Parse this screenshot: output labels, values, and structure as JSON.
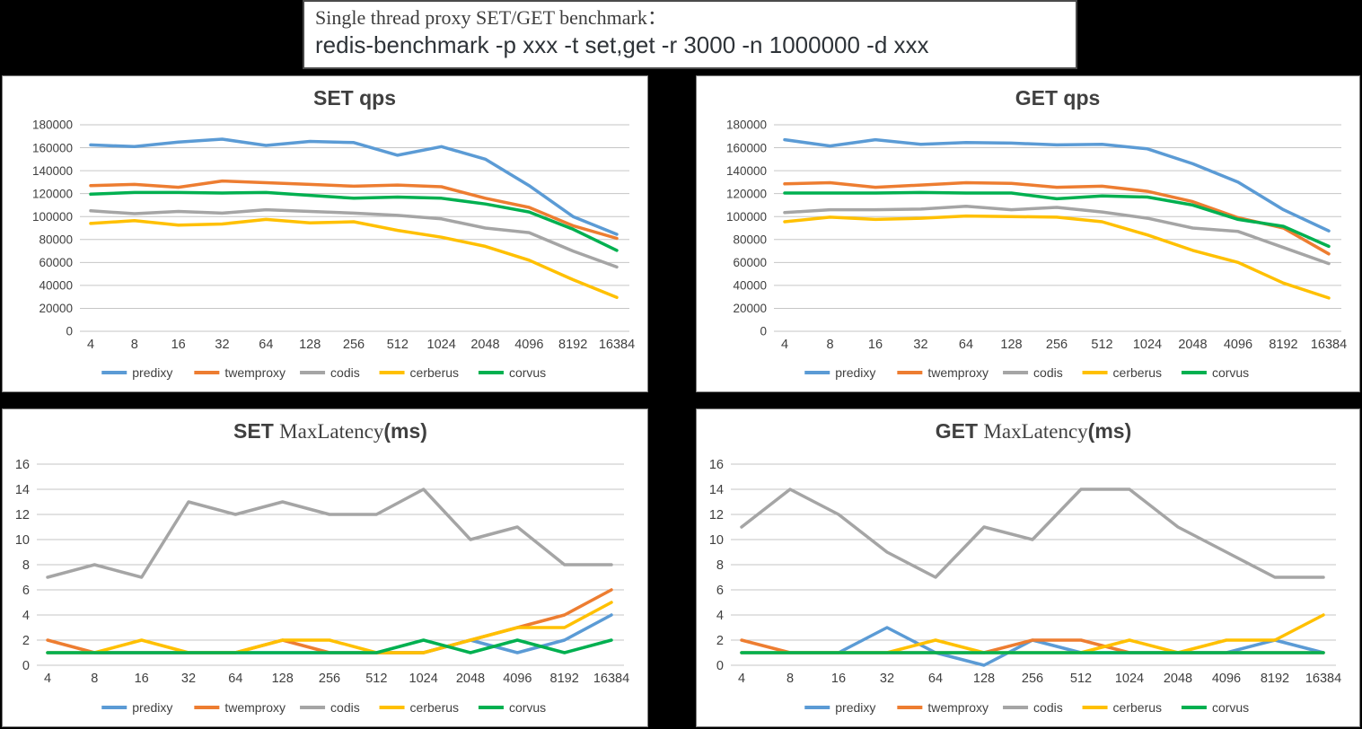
{
  "header": {
    "line1": "Single thread proxy SET/GET benchmark：",
    "line2": "redis-benchmark -p xxx -t set,get -r 3000 -n 1000000 -d xxx"
  },
  "legend": [
    "predixy",
    "twemproxy",
    "codis",
    "cerberus",
    "corvus"
  ],
  "colors": {
    "predixy": "#5B9BD5",
    "twemproxy": "#ED7D31",
    "codis": "#A5A5A5",
    "cerberus": "#FFC000",
    "corvus": "#00B050",
    "grid": "#C6C6C6",
    "axis_text": "#404040"
  },
  "chart_data": [
    {
      "id": "set-qps",
      "type": "line",
      "title": "SET  qps",
      "title_parts": [
        {
          "text": "SET  qps",
          "font": "sans"
        }
      ],
      "xlabel": "",
      "ylabel": "",
      "ylim": [
        0,
        180000
      ],
      "yticks": [
        0,
        20000,
        40000,
        60000,
        80000,
        100000,
        120000,
        140000,
        160000,
        180000
      ],
      "legend_position": "bottom",
      "grid": true,
      "categories": [
        "4",
        "8",
        "16",
        "32",
        "64",
        "128",
        "256",
        "512",
        "1024",
        "2048",
        "4096",
        "8192",
        "16384"
      ],
      "series": [
        {
          "name": "predixy",
          "values": [
            162500,
            161000,
            165000,
            167500,
            162000,
            165500,
            164500,
            153500,
            161000,
            150000,
            127000,
            100000,
            84500
          ]
        },
        {
          "name": "twemproxy",
          "values": [
            127000,
            128000,
            125500,
            131000,
            129500,
            128000,
            126500,
            127500,
            126000,
            116000,
            108000,
            92000,
            81000
          ]
        },
        {
          "name": "codis",
          "values": [
            105000,
            102500,
            104500,
            103000,
            106000,
            104500,
            103000,
            101000,
            98000,
            90000,
            86000,
            70000,
            56000
          ]
        },
        {
          "name": "cerberus",
          "values": [
            94000,
            96500,
            92500,
            93500,
            97500,
            94500,
            95500,
            88000,
            82000,
            74000,
            62000,
            45000,
            29500
          ]
        },
        {
          "name": "corvus",
          "values": [
            119500,
            121000,
            121000,
            120500,
            121000,
            118500,
            116000,
            117000,
            116000,
            111000,
            104000,
            89000,
            70500
          ]
        }
      ]
    },
    {
      "id": "get-qps",
      "type": "line",
      "title": "GET  qps",
      "title_parts": [
        {
          "text": "GET  qps",
          "font": "sans"
        }
      ],
      "xlabel": "",
      "ylabel": "",
      "ylim": [
        0,
        180000
      ],
      "yticks": [
        0,
        20000,
        40000,
        60000,
        80000,
        100000,
        120000,
        140000,
        160000,
        180000
      ],
      "legend_position": "bottom",
      "grid": true,
      "categories": [
        "4",
        "8",
        "16",
        "32",
        "64",
        "128",
        "256",
        "512",
        "1024",
        "2048",
        "4096",
        "8192",
        "16384"
      ],
      "series": [
        {
          "name": "predixy",
          "values": [
            167000,
            161500,
            167000,
            163000,
            164500,
            164000,
            162500,
            163000,
            159000,
            146000,
            130000,
            106000,
            87500
          ]
        },
        {
          "name": "twemproxy",
          "values": [
            128500,
            129500,
            125500,
            127500,
            129500,
            129000,
            125500,
            126500,
            122000,
            113000,
            99000,
            90000,
            67500
          ]
        },
        {
          "name": "codis",
          "values": [
            103500,
            106000,
            106000,
            106500,
            109000,
            106000,
            108000,
            104000,
            98500,
            90000,
            87000,
            73000,
            59000
          ]
        },
        {
          "name": "cerberus",
          "values": [
            95500,
            99500,
            97500,
            98500,
            100500,
            100000,
            99500,
            95500,
            84000,
            70500,
            60000,
            42000,
            29000
          ]
        },
        {
          "name": "corvus",
          "values": [
            120500,
            120500,
            120500,
            121000,
            120500,
            120500,
            115500,
            118000,
            117000,
            110000,
            97500,
            91500,
            74000
          ]
        }
      ]
    },
    {
      "id": "set-maxlatency",
      "type": "line",
      "title": "SET MaxLatency(ms)",
      "title_parts": [
        {
          "text": "SET ",
          "font": "sans"
        },
        {
          "text": "MaxLatency",
          "font": "serif"
        },
        {
          "text": "(ms)",
          "font": "sans"
        }
      ],
      "xlabel": "",
      "ylabel": "",
      "ylim": [
        0,
        16
      ],
      "yticks": [
        0,
        2,
        4,
        6,
        8,
        10,
        12,
        14,
        16
      ],
      "legend_position": "bottom",
      "grid": true,
      "categories": [
        "4",
        "8",
        "16",
        "32",
        "64",
        "128",
        "256",
        "512",
        "1024",
        "2048",
        "4096",
        "8192",
        "16384"
      ],
      "series": [
        {
          "name": "predixy",
          "values": [
            1,
            1,
            1,
            1,
            1,
            1,
            1,
            1,
            1,
            2,
            1,
            2,
            4
          ]
        },
        {
          "name": "twemproxy",
          "values": [
            2,
            1,
            1,
            1,
            1,
            2,
            1,
            1,
            1,
            2,
            3,
            4,
            6
          ]
        },
        {
          "name": "codis",
          "values": [
            7,
            8,
            7,
            13,
            12,
            13,
            12,
            12,
            14,
            10,
            11,
            8,
            8
          ]
        },
        {
          "name": "cerberus",
          "values": [
            1,
            1,
            2,
            1,
            1,
            2,
            2,
            1,
            1,
            2,
            3,
            3,
            5
          ]
        },
        {
          "name": "corvus",
          "values": [
            1,
            1,
            1,
            1,
            1,
            1,
            1,
            1,
            2,
            1,
            2,
            1,
            2
          ]
        }
      ]
    },
    {
      "id": "get-maxlatency",
      "type": "line",
      "title": "GET MaxLatency(ms)",
      "title_parts": [
        {
          "text": "GET ",
          "font": "sans"
        },
        {
          "text": "MaxLatency",
          "font": "serif"
        },
        {
          "text": "(ms)",
          "font": "sans"
        }
      ],
      "xlabel": "",
      "ylabel": "",
      "ylim": [
        0,
        16
      ],
      "yticks": [
        0,
        2,
        4,
        6,
        8,
        10,
        12,
        14,
        16
      ],
      "legend_position": "bottom",
      "grid": true,
      "categories": [
        "4",
        "8",
        "16",
        "32",
        "64",
        "128",
        "256",
        "512",
        "1024",
        "2048",
        "4096",
        "8192",
        "16384"
      ],
      "series": [
        {
          "name": "predixy",
          "values": [
            1,
            1,
            1,
            3,
            1,
            0,
            2,
            1,
            1,
            1,
            1,
            2,
            1
          ]
        },
        {
          "name": "twemproxy",
          "values": [
            2,
            1,
            1,
            1,
            1,
            1,
            2,
            2,
            1,
            1,
            1,
            1,
            1
          ]
        },
        {
          "name": "codis",
          "values": [
            11,
            14,
            12,
            9,
            7,
            11,
            10,
            14,
            14,
            11,
            9,
            7,
            7
          ]
        },
        {
          "name": "cerberus",
          "values": [
            1,
            1,
            1,
            1,
            2,
            1,
            1,
            1,
            2,
            1,
            2,
            2,
            4
          ]
        },
        {
          "name": "corvus",
          "values": [
            1,
            1,
            1,
            1,
            1,
            1,
            1,
            1,
            1,
            1,
            1,
            1,
            1
          ]
        }
      ]
    }
  ]
}
